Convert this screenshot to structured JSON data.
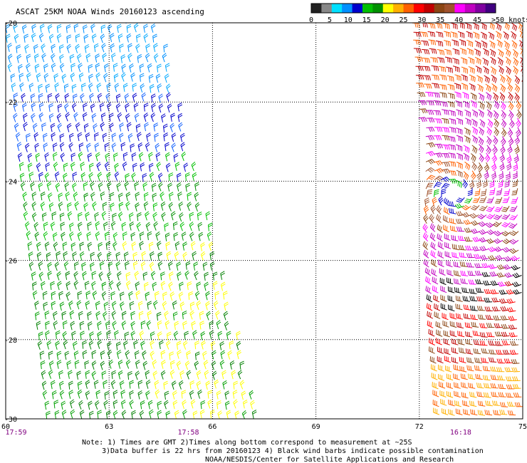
{
  "title": "ASCAT 25KM NOAA Winds 20160123 ascending",
  "legend": {
    "labels": [
      "0",
      "5",
      "10",
      "15",
      "20",
      "25",
      "30",
      "35",
      "40",
      "45",
      ">50 knots"
    ],
    "colors": [
      "#222222",
      "#888888",
      "#00e0ff",
      "#0090ff",
      "#0000cc",
      "#00c000",
      "#009000",
      "#ffff00",
      "#ffb000",
      "#ff6000",
      "#ff0000",
      "#c00000",
      "#8b4513",
      "#a0522d",
      "#ff00ff",
      "#c000c0",
      "#8000a0",
      "#400080"
    ]
  },
  "axes": {
    "x_labels": [
      "60",
      "63",
      "66",
      "69",
      "72",
      "75"
    ],
    "y_labels": [
      "-20",
      "-22",
      "-24",
      "-26",
      "-28",
      "-30"
    ]
  },
  "times": [
    {
      "text": "17:59",
      "lon": 60.3
    },
    {
      "text": "17:58",
      "lon": 65.3
    },
    {
      "text": "16:18",
      "lon": 73.2
    }
  ],
  "notes": [
    "Note: 1) Times are GMT 2)Times along bottom correspond to measurement at ~25S",
    "3)Data buffer is 22 hrs from 20160123 4) Black wind barbs indicate possible contamination",
    "NOAA/NESDIS/Center for Satellite Applications and Research"
  ],
  "map": {
    "lon_range": [
      60,
      75
    ],
    "lat_range": [
      -30,
      -20
    ],
    "swaths": [
      {
        "name": "west-swath",
        "top_lon": [
          60,
          64.4
        ],
        "bottom_lon": [
          61.2,
          67.3
        ]
      },
      {
        "name": "east-swath",
        "top_lon": [
          71.8,
          75
        ],
        "bottom_lon": [
          72.6,
          75
        ]
      }
    ],
    "cyclone_center": {
      "lon": 73.0,
      "lat": -24.3
    }
  }
}
